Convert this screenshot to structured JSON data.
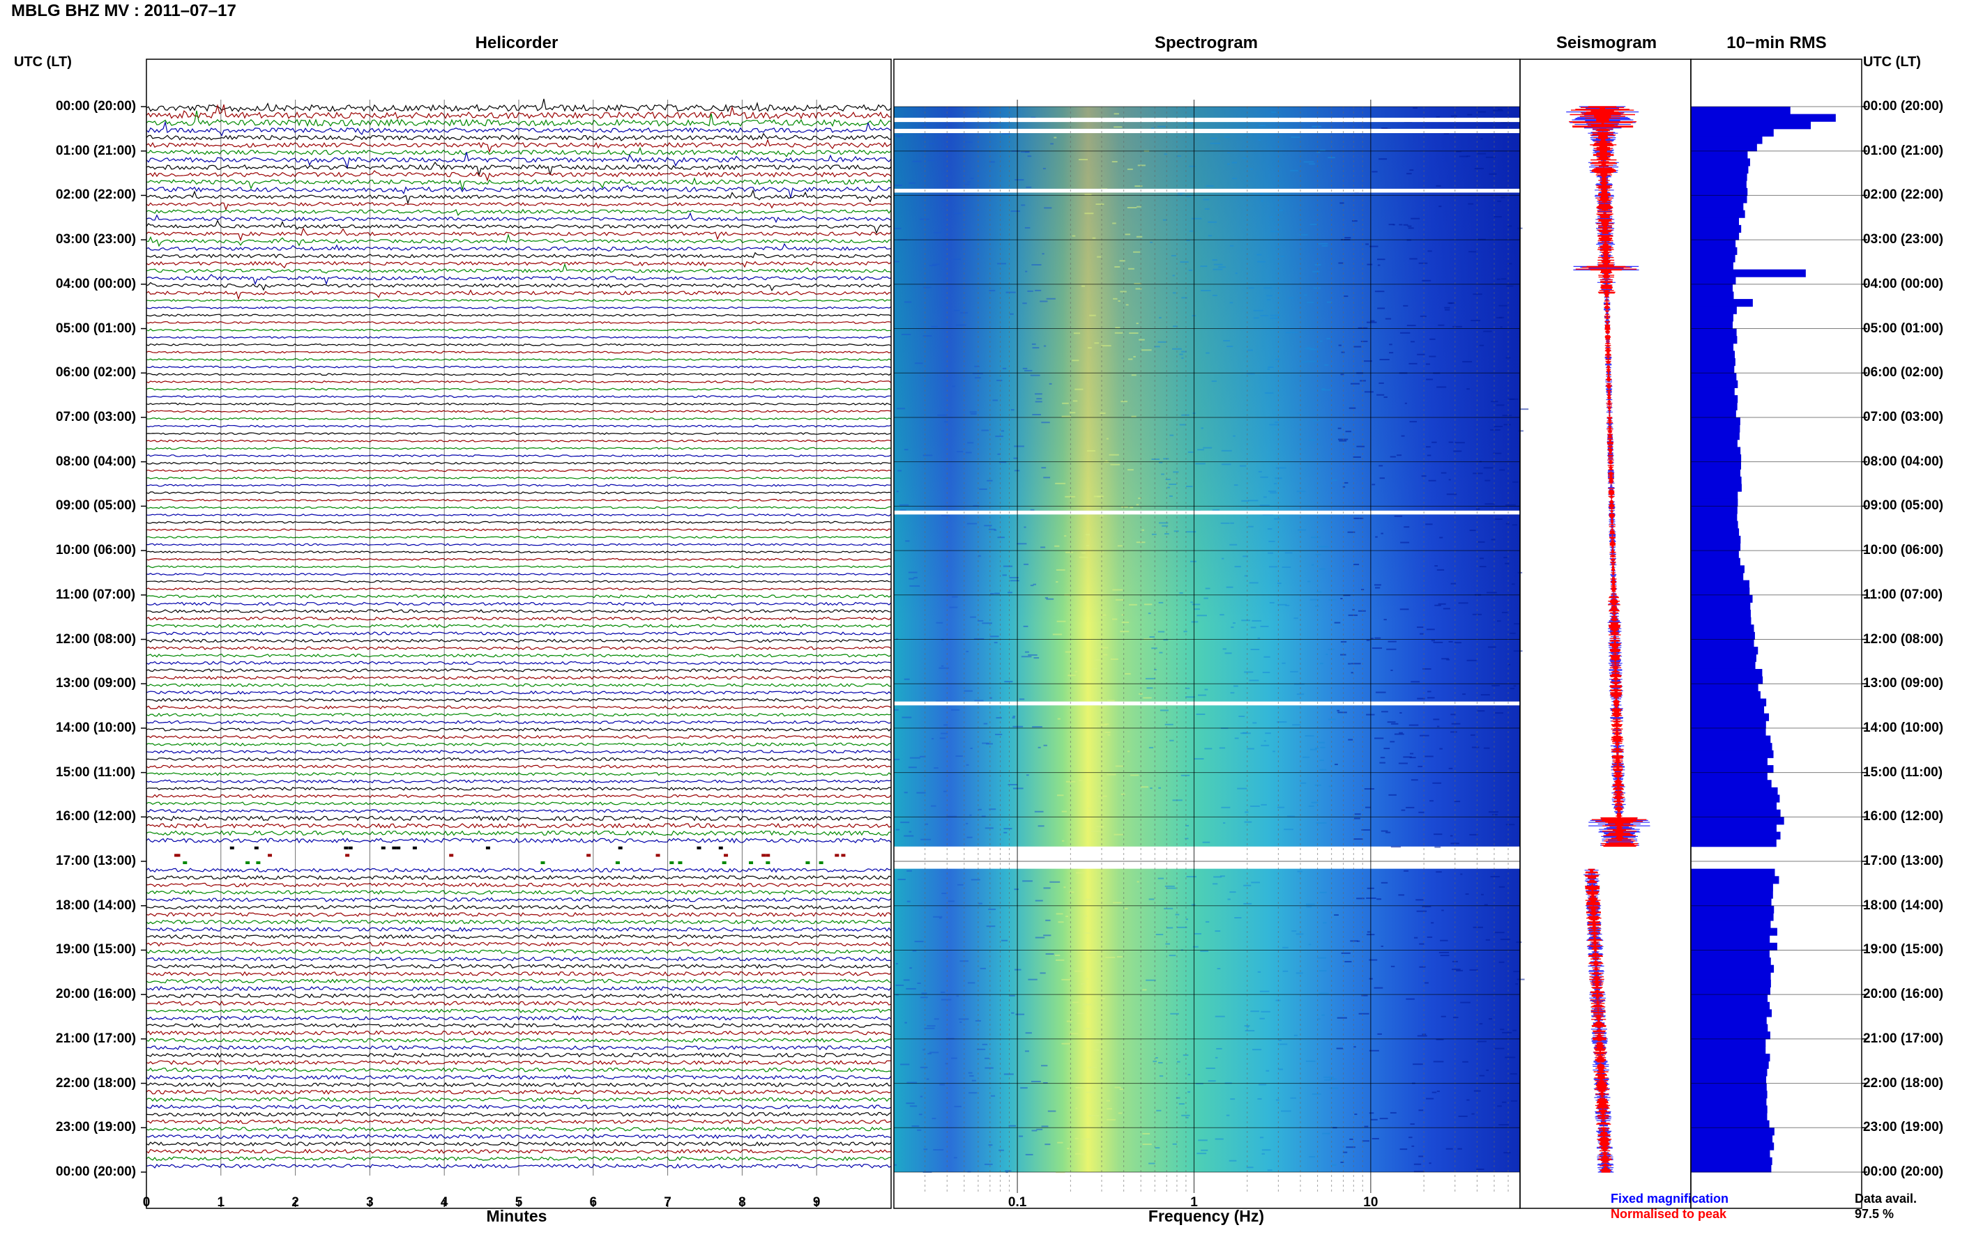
{
  "title": "MBLG BHZ MV : 2011–07–17",
  "panels": {
    "helicorder": "Helicorder",
    "spectrogram": "Spectrogram",
    "seismogram": "Seismogram",
    "rms": "10−min RMS"
  },
  "axis_label_left": "UTC (LT)",
  "axis_label_right": "UTC (LT)",
  "hour_labels": [
    "00:00 (20:00)",
    "01:00 (21:00)",
    "02:00 (22:00)",
    "03:00 (23:00)",
    "04:00 (00:00)",
    "05:00 (01:00)",
    "06:00 (02:00)",
    "07:00 (03:00)",
    "08:00 (04:00)",
    "09:00 (05:00)",
    "10:00 (06:00)",
    "11:00 (07:00)",
    "12:00 (08:00)",
    "13:00 (09:00)",
    "14:00 (10:00)",
    "15:00 (11:00)",
    "16:00 (12:00)",
    "17:00 (13:00)",
    "18:00 (14:00)",
    "19:00 (15:00)",
    "20:00 (16:00)",
    "21:00 (17:00)",
    "22:00 (18:00)",
    "23:00 (19:00)",
    "00:00 (20:00)"
  ],
  "minute_ticks": [
    "0",
    "1",
    "2",
    "3",
    "4",
    "5",
    "6",
    "7",
    "8",
    "9"
  ],
  "minutes_label": "Minutes",
  "freq_ticks": [
    "0.1",
    "1",
    "10"
  ],
  "freq_label": "Frequency (Hz)",
  "legend": {
    "fixed": "Fixed magnification",
    "normalised": "Normalised to peak",
    "fixed_color": "#0000ff",
    "normalised_color": "#ff0000"
  },
  "data_avail_label": "Data avail.",
  "data_avail_value": "97.5 %",
  "colors": {
    "trace_cycle": [
      "#000000",
      "#990000",
      "#008800",
      "#0000aa"
    ],
    "rms_fill": "#0000dd",
    "spectrogram_low": "#00008b",
    "spectrogram_high": "#ffff66"
  },
  "chart_data": [
    {
      "type": "line",
      "title": "Helicorder",
      "xlabel": "Minutes",
      "x_range": [
        0,
        10
      ],
      "y_range_utc": [
        "00:00",
        "24:00"
      ],
      "rows_per_hour": 6,
      "row_minutes": 10,
      "gap_utc": [
        "16:40",
        "17:10"
      ],
      "active_periods_utc": [
        "00:00-04:10",
        "16:00-16:40"
      ]
    },
    {
      "type": "heatmap",
      "title": "Spectrogram",
      "xlabel": "Frequency (Hz)",
      "x_scale": "log",
      "x_range": [
        0.02,
        70
      ],
      "peak_energy_hz": [
        0.2,
        0.35
      ],
      "gap_utc": [
        "16:40",
        "17:10"
      ]
    },
    {
      "type": "line",
      "title": "Seismogram",
      "series": [
        {
          "name": "Fixed magnification",
          "color": "#0000ff"
        },
        {
          "name": "Normalised to peak",
          "color": "#ff0000"
        }
      ]
    },
    {
      "type": "bar",
      "title": "10−min RMS",
      "orientation": "horizontal",
      "bin_minutes": 10,
      "hour_values": [
        1.0,
        0.58,
        0.55,
        0.45,
        0.44,
        0.44,
        0.45,
        0.48,
        0.5,
        0.48,
        0.5,
        0.6,
        0.65,
        0.7,
        0.78,
        0.8,
        0.9,
        0.88,
        0.84,
        0.82,
        0.8,
        0.78,
        0.76,
        0.8
      ],
      "spikes": [
        {
          "hour": 0.2,
          "value": 1.45
        },
        {
          "hour": 0.35,
          "value": 1.2
        },
        {
          "hour": 3.6,
          "value": 1.15
        },
        {
          "hour": 4.4,
          "value": 0.62
        }
      ],
      "gap_utc": [
        "16:40",
        "17:10"
      ]
    }
  ]
}
